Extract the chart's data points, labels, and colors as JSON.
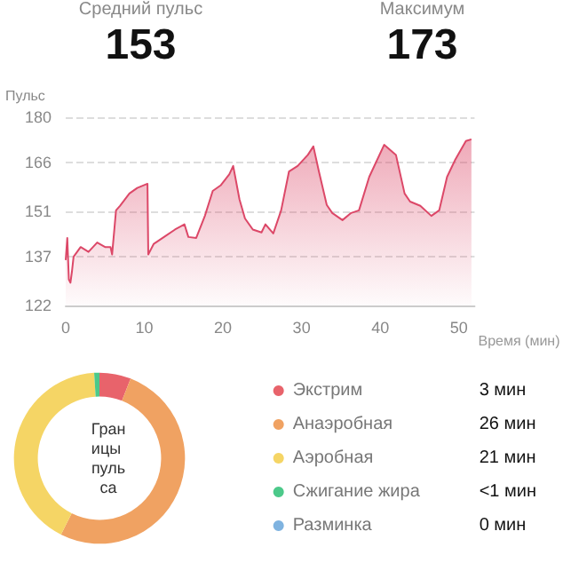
{
  "chart_data": [
    {
      "type": "other",
      "annotations": [
        "Средний пульс",
        "153",
        "Максимум",
        "173"
      ]
    },
    {
      "type": "area",
      "ylabel": "Пульс",
      "xlabel": "Время (мин)",
      "xlim": [
        0,
        52
      ],
      "xticks": [
        0,
        10,
        20,
        30,
        40,
        50
      ],
      "ylim": [
        122,
        180
      ],
      "yticks": [
        122,
        137,
        151,
        166,
        180
      ],
      "grid": "y",
      "marker": "none",
      "line_style": "solid",
      "legend": false,
      "x": [
        0,
        0.2,
        0.4,
        0.6,
        0.8,
        1.0,
        1.9,
        2.9,
        4.0,
        5.0,
        5.7,
        5.9,
        6.4,
        6.9,
        8.1,
        9.1,
        10.4,
        10.5,
        11.2,
        12.5,
        13.9,
        15.1,
        15.6,
        16.6,
        17.7,
        18.7,
        19.7,
        20.8,
        21.3,
        22.1,
        22.8,
        23.8,
        24.9,
        25.4,
        26.4,
        27.4,
        28.4,
        29.5,
        30.8,
        31.5,
        32.2,
        33.2,
        33.9,
        35.2,
        36.3,
        37.3,
        38.6,
        40.5,
        42.0,
        43.1,
        43.8,
        45.1,
        46.5,
        47.5,
        48.5,
        49.5,
        50.9,
        51.6
      ],
      "series": [
        {
          "color": "#dc4868",
          "values": [
            136,
            142.8,
            130,
            129,
            132.6,
            137,
            140,
            138.5,
            141.4,
            140,
            140,
            137.7,
            151.3,
            152.7,
            156.5,
            158.2,
            159.5,
            137.7,
            141,
            143.1,
            145.4,
            147,
            143.1,
            142.8,
            149.6,
            157.3,
            159,
            162.4,
            165,
            154.7,
            148.8,
            145.4,
            144.5,
            147,
            144.2,
            151.3,
            163.3,
            165,
            168.4,
            171,
            163.3,
            153,
            150.5,
            148.3,
            150.5,
            151.3,
            161.6,
            171.5,
            168.4,
            156.5,
            154,
            152.7,
            149.6,
            151.3,
            161.6,
            166.7,
            172.7,
            173.2
          ]
        }
      ]
    },
    {
      "type": "donut",
      "title": "Границы пульса",
      "legend": "right",
      "categories": [
        "Экстрим",
        "Анаэробная",
        "Аэробная",
        "Сжигание жира",
        "Разминка"
      ],
      "values": [
        3,
        26,
        21,
        0.5,
        0
      ],
      "value_labels": [
        "3 мин",
        "26 мин",
        "21 мин",
        "<1 мин",
        "0 мин"
      ],
      "colors": [
        "#e8636b",
        "#f0a262",
        "#f5d565",
        "#4cc98a",
        "#7fb3e0"
      ]
    }
  ]
}
